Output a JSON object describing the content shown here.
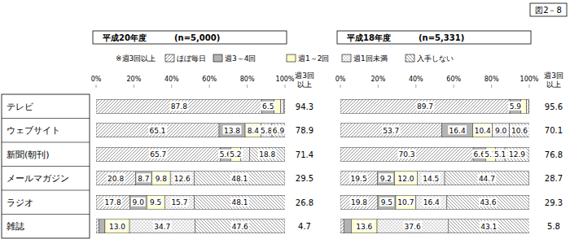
{
  "figure_label": "図2－8",
  "chart_data": {
    "type": "bar",
    "orientation": "horizontal",
    "stacked": true,
    "data_labels": true,
    "grid": false,
    "legend": "top",
    "annotation": "※週3回以上",
    "summary_label": "週3回以上",
    "categories": [
      "テレビ",
      "ウェブサイト",
      "新聞(朝刊)",
      "メールマガジン",
      "ラジオ",
      "雑誌"
    ],
    "series": [
      {
        "name": "ほぼ毎日",
        "color": "#ffffff"
      },
      {
        "name": "週3～4回",
        "color": "#b3b3b3"
      },
      {
        "name": "週1～2回",
        "color": "#ffffcc"
      },
      {
        "name": "週1回未満",
        "color": "#ffffff"
      },
      {
        "name": "入手しない",
        "color": "#ffffff"
      }
    ],
    "xlim": [
      0,
      100
    ],
    "xticks": [
      {
        "value": 0,
        "label": "0%"
      },
      {
        "value": 20,
        "label": "20%"
      },
      {
        "value": 40,
        "label": "40%"
      },
      {
        "value": 60,
        "label": "60%"
      },
      {
        "value": 80,
        "label": "80%"
      },
      {
        "value": 100,
        "label": "100%"
      }
    ],
    "panels": [
      {
        "title": "平成20年度",
        "subtitle": "(n=5,000)",
        "values": [
          [
            87.8,
            65.1,
            65.7,
            20.8,
            17.8,
            1.5
          ],
          [
            6.5,
            13.8,
            5.6,
            8.7,
            9.0,
            3.2
          ],
          [
            3.4,
            8.4,
            5.2,
            9.8,
            9.5,
            13.0
          ],
          [
            1.8,
            5.8,
            4.7,
            12.6,
            15.7,
            34.7
          ],
          [
            0.5,
            6.9,
            18.8,
            48.1,
            48.1,
            47.6
          ]
        ],
        "value_labels": [
          [
            "87.8",
            "65.1",
            "65.7",
            "20.8",
            "17.8",
            null
          ],
          [
            "6.5",
            "13.8",
            "5.6",
            "8.7",
            "9.0",
            null
          ],
          [
            null,
            "8.4",
            "5.2",
            "9.8",
            "9.5",
            "13.0"
          ],
          [
            null,
            "5.8",
            null,
            "12.6",
            "15.7",
            "34.7"
          ],
          [
            null,
            "6.9",
            "18.8",
            "48.1",
            "48.1",
            "47.6"
          ]
        ],
        "summary": [
          94.3,
          78.9,
          71.4,
          29.5,
          26.8,
          4.7
        ]
      },
      {
        "title": "平成18年度",
        "subtitle": "(n=5,331)",
        "values": [
          [
            89.7,
            53.7,
            70.3,
            19.5,
            19.8,
            1.8
          ],
          [
            5.9,
            16.4,
            6.6,
            9.2,
            9.5,
            4.0
          ],
          [
            3.0,
            10.4,
            5.1,
            12.0,
            10.7,
            13.6
          ],
          [
            1.1,
            9.0,
            5.1,
            14.5,
            16.4,
            37.6
          ],
          [
            0.3,
            10.6,
            12.9,
            44.7,
            43.6,
            43.1
          ]
        ],
        "value_labels": [
          [
            "89.7",
            "53.7",
            "70.3",
            "19.5",
            "19.8",
            null
          ],
          [
            "5.9",
            "16.4",
            "6.6",
            "9.2",
            "9.5",
            null
          ],
          [
            null,
            "10.4",
            "5.1",
            "12.0",
            "10.7",
            "13.6"
          ],
          [
            null,
            "9.0",
            "5.1",
            "14.5",
            "16.4",
            "37.6"
          ],
          [
            null,
            "10.6",
            "12.9",
            "44.7",
            "43.6",
            "43.1"
          ]
        ],
        "summary": [
          95.6,
          70.1,
          76.8,
          28.7,
          29.3,
          5.8
        ]
      }
    ]
  }
}
